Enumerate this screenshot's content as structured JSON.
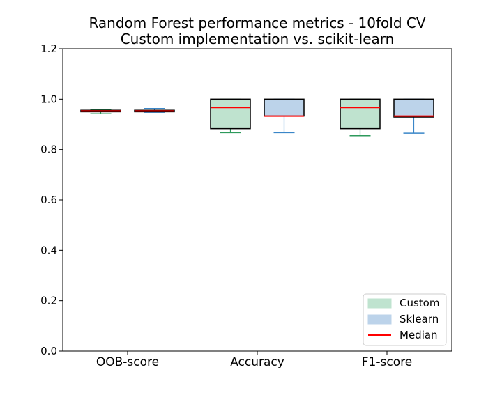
{
  "chart_data": {
    "type": "box",
    "title": [
      "Random Forest performance metrics - 10fold CV",
      "Custom implementation vs. scikit-learn"
    ],
    "xlabel": "",
    "ylabel": "",
    "ylim": [
      0.0,
      1.2
    ],
    "yticks": [
      "0.0",
      "0.2",
      "0.4",
      "0.6",
      "0.8",
      "1.0",
      "1.2"
    ],
    "categories": [
      "OOB-score",
      "Accuracy",
      "F1-score"
    ],
    "grid": false,
    "legend_position": "bottom-right",
    "legend": [
      {
        "label": "Custom",
        "kind": "patch",
        "color": "#bfe3cf"
      },
      {
        "label": "Sklearn",
        "kind": "patch",
        "color": "#bcd3ea"
      },
      {
        "label": "Median",
        "kind": "line",
        "color": "#ff0000"
      }
    ],
    "series": [
      {
        "name": "Custom",
        "fill": "#bfe3cf",
        "whisker_color": "#2e9a5c",
        "boxes": [
          {
            "category": "OOB-score",
            "whislo": 0.942,
            "q1": 0.95,
            "med": 0.953,
            "q3": 0.956,
            "whishi": 0.958
          },
          {
            "category": "Accuracy",
            "whislo": 0.867,
            "q1": 0.883,
            "med": 0.967,
            "q3": 1.0,
            "whishi": 1.0
          },
          {
            "category": "F1-score",
            "whislo": 0.855,
            "q1": 0.883,
            "med": 0.967,
            "q3": 1.0,
            "whishi": 1.0
          }
        ]
      },
      {
        "name": "Sklearn",
        "fill": "#bcd3ea",
        "whisker_color": "#3a86c8",
        "boxes": [
          {
            "category": "OOB-score",
            "whislo": 0.948,
            "q1": 0.95,
            "med": 0.953,
            "q3": 0.956,
            "whishi": 0.963
          },
          {
            "category": "Accuracy",
            "whislo": 0.867,
            "q1": 0.933,
            "med": 0.933,
            "q3": 1.0,
            "whishi": 1.0
          },
          {
            "category": "F1-score",
            "whislo": 0.865,
            "q1": 0.929,
            "med": 0.933,
            "q3": 1.0,
            "whishi": 1.0
          }
        ]
      }
    ],
    "median_color": "#ff0000"
  }
}
